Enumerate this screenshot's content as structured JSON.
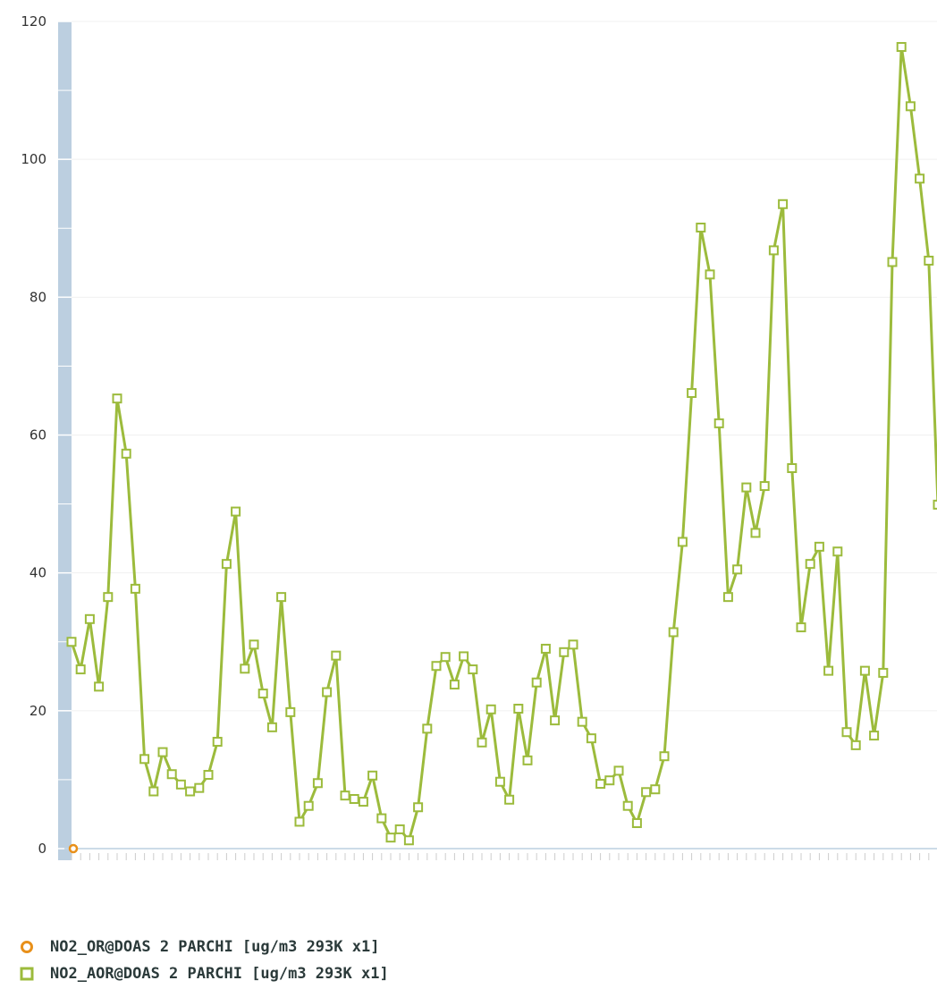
{
  "chart_data": {
    "type": "line",
    "title": "",
    "xlabel": "",
    "ylabel": "",
    "ylim": [
      0,
      120
    ],
    "yticks": [
      0,
      20,
      40,
      60,
      80,
      100,
      120
    ],
    "grid": true,
    "legend_position": "bottom-left",
    "series": [
      {
        "name": "NO2_OR@DOAS 2 PARCHI [ug/m3 293K x1]",
        "color": "#e8901a",
        "marker": "circle",
        "values": [
          0
        ]
      },
      {
        "name": "NO2_AOR@DOAS 2 PARCHI [ug/m3 293K x1]",
        "color": "#9cbb3c",
        "marker": "square",
        "values": [
          30,
          26,
          33.3,
          23.5,
          36.5,
          65.3,
          57.3,
          37.7,
          13,
          8.3,
          14,
          10.8,
          9.3,
          8.3,
          8.8,
          10.7,
          15.5,
          41.3,
          48.9,
          26.1,
          29.6,
          22.5,
          17.6,
          36.5,
          19.8,
          3.9,
          6.2,
          9.5,
          22.7,
          28,
          7.7,
          7.2,
          6.8,
          10.6,
          4.4,
          1.6,
          2.8,
          1.2,
          6,
          17.4,
          26.5,
          27.8,
          23.8,
          27.9,
          26,
          15.4,
          20.2,
          9.7,
          7.1,
          20.3,
          12.8,
          24.1,
          29,
          18.6,
          28.5,
          29.6,
          18.4,
          16,
          9.4,
          9.9,
          11.3,
          6.2,
          3.7,
          8.2,
          8.6,
          13.4,
          31.4,
          44.5,
          66.1,
          90.1,
          83.3,
          61.7,
          36.5,
          40.5,
          52.4,
          45.8,
          52.6,
          86.8,
          93.5,
          55.2,
          32.1,
          41.3,
          43.8,
          25.8,
          43.1,
          16.9,
          15,
          25.8,
          16.4,
          25.5,
          85.1,
          116.3,
          107.7,
          97.2,
          85.3,
          49.9
        ]
      }
    ]
  }
}
